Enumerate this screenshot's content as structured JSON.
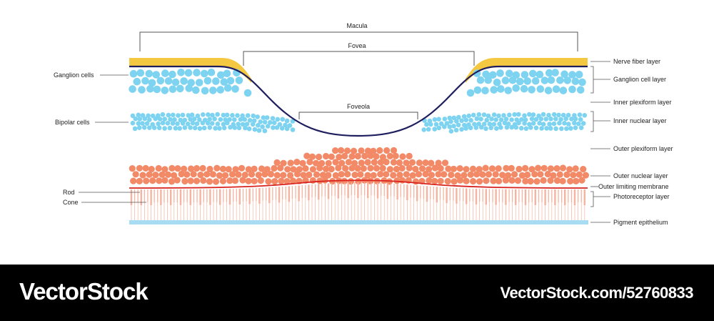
{
  "diagram": {
    "brackets": {
      "macula": "Macula",
      "fovea": "Fovea",
      "foveola": "Foveola"
    },
    "left_labels": {
      "ganglion_cells": "Ganglion cells",
      "bipolar_cells": "Bipolar cells",
      "rod": "Rod",
      "cone": "Cone"
    },
    "right_labels": {
      "nerve_fiber_layer": "Nerve fiber layer",
      "ganglion_cell_layer": "Ganglion cell layer",
      "inner_plexiform_layer": "Inner plexiform layer",
      "inner_nuclear_layer": "Inner nuclear layer",
      "outer_plexiform_layer": "Outer plexiform layer",
      "outer_nuclear_layer": "Outer nuclear layer",
      "outer_limiting_membrane": "Outer limiting membrane",
      "photoreceptor_layer": "Photoreceptor layer",
      "pigment_epithelium": "Pigment epithelium"
    },
    "colors": {
      "nerve_fiber": "#f5c842",
      "ganglion": "#7dd3f0",
      "bipolar": "#7dd3f0",
      "nuclear": "#f28a68",
      "photoreceptor": "#f6b3a0",
      "membrane": "#d8231f",
      "fovea_curve": "#1e1e5e",
      "pigment": "#a8dcf2",
      "bracket": "#555555"
    }
  },
  "footer": {
    "brand": "VectorStock",
    "stock_id": "VectorStock.com/52760833"
  }
}
